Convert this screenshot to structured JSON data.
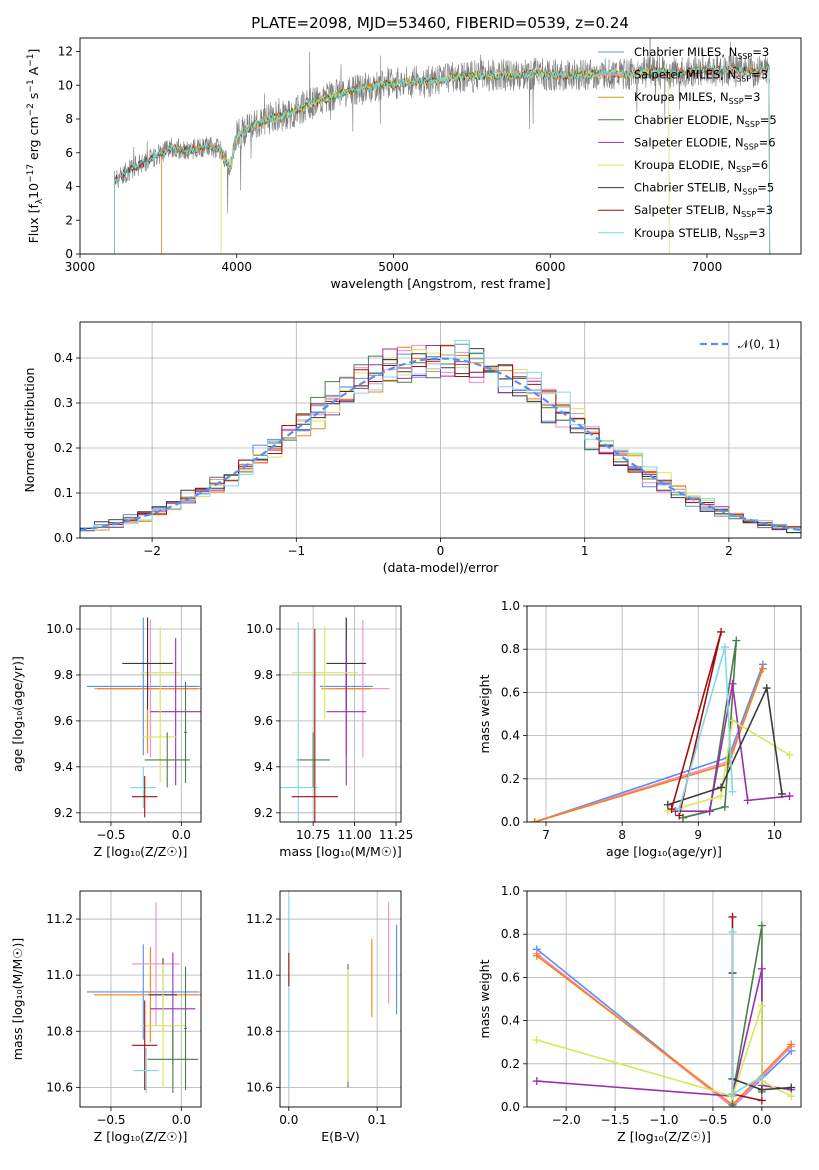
{
  "title": "PLATE=2098, MJD=53460, FIBERID=0539, z=0.24",
  "colors": {
    "chabrier_miles": "#5b8def",
    "salpeter_miles": "#f08ad0",
    "kroupa_miles": "#c8a020",
    "chabrier_elodie": "#4a7c4a",
    "salpeter_elodie": "#9b2fb0",
    "kroupa_elodie": "#d9e65a",
    "chabrier_stelib": "#3a3a3a",
    "salpeter_stelib": "#a01010",
    "kroupa_stelib": "#7fd8e6",
    "orange": "#ff7f0e",
    "data": "#808080",
    "grid": "#b0b0b0",
    "gauss": "#5b8def"
  },
  "chart_data": [
    {
      "type": "line",
      "panel": "spectrum",
      "title": "PLATE=2098, MJD=53460, FIBERID=0539, z=0.24",
      "xlabel": "wavelength [Angstrom, rest frame]",
      "ylabel_parts": {
        "a": "Flux [f",
        "b": "λ",
        "c": "10",
        "d": "−17",
        "e": " erg cm",
        "f": "−2",
        "g": " s",
        "h": "−1",
        "i": " A",
        "j": "−1",
        "k": "]"
      },
      "xlim": [
        3000,
        7600
      ],
      "ylim": [
        0,
        12.8
      ],
      "xticks": [
        3000,
        4000,
        5000,
        6000,
        7000
      ],
      "yticks": [
        0,
        2,
        4,
        6,
        8,
        10,
        12
      ],
      "continuum": [
        [
          3220,
          4.4
        ],
        [
          3300,
          4.9
        ],
        [
          3400,
          5.4
        ],
        [
          3500,
          5.9
        ],
        [
          3600,
          6.3
        ],
        [
          3700,
          6.1
        ],
        [
          3800,
          6.4
        ],
        [
          3900,
          6.2
        ],
        [
          3960,
          5.0
        ],
        [
          4000,
          7.0
        ],
        [
          4100,
          7.6
        ],
        [
          4200,
          8.0
        ],
        [
          4300,
          8.2
        ],
        [
          4400,
          8.6
        ],
        [
          4500,
          9.0
        ],
        [
          4600,
          9.3
        ],
        [
          4700,
          9.6
        ],
        [
          4800,
          9.8
        ],
        [
          4900,
          10.0
        ],
        [
          5000,
          10.1
        ],
        [
          5100,
          10.2
        ],
        [
          5200,
          10.2
        ],
        [
          5300,
          10.3
        ],
        [
          5400,
          10.5
        ],
        [
          5500,
          10.5
        ],
        [
          5600,
          10.6
        ],
        [
          5700,
          10.6
        ],
        [
          5800,
          10.6
        ],
        [
          5900,
          10.7
        ],
        [
          6000,
          10.6
        ],
        [
          6100,
          10.6
        ],
        [
          6200,
          10.6
        ],
        [
          6300,
          10.7
        ],
        [
          6400,
          10.7
        ],
        [
          6500,
          10.6
        ],
        [
          6600,
          10.8
        ],
        [
          6700,
          10.8
        ],
        [
          6800,
          10.7
        ],
        [
          6900,
          10.8
        ],
        [
          7000,
          10.9
        ],
        [
          7100,
          10.9
        ],
        [
          7200,
          10.9
        ],
        [
          7300,
          10.8
        ],
        [
          7400,
          11.0
        ]
      ],
      "legend": [
        {
          "label": "Chabrier MILES, N",
          "sub": "SSP",
          "value": "=3",
          "color": "#5b8def"
        },
        {
          "label": "Salpeter MILES, N",
          "sub": "SSP",
          "value": "=3",
          "color": "#f08ad0"
        },
        {
          "label": "Kroupa MILES, N",
          "sub": "SSP",
          "value": "=3",
          "color": "#c8a020"
        },
        {
          "label": "Chabrier ELODIE, N",
          "sub": "SSP",
          "value": "=5",
          "color": "#4a7c4a"
        },
        {
          "label": "Salpeter ELODIE, N",
          "sub": "SSP",
          "value": "=6",
          "color": "#9b2fb0"
        },
        {
          "label": "Kroupa ELODIE, N",
          "sub": "SSP",
          "value": "=6",
          "color": "#d9e65a"
        },
        {
          "label": "Chabrier STELIB, N",
          "sub": "SSP",
          "value": "=5",
          "color": "#3a3a3a"
        },
        {
          "label": "Salpeter STELIB, N",
          "sub": "SSP",
          "value": "=3",
          "color": "#a01010"
        },
        {
          "label": "Kroupa STELIB, N",
          "sub": "SSP",
          "value": "=3",
          "color": "#7fd8e6"
        }
      ]
    },
    {
      "type": "histogram",
      "panel": "residuals",
      "xlabel": "(data-model)/error",
      "ylabel": "Normed distribution",
      "xlim": [
        -2.5,
        2.5
      ],
      "ylim": [
        0,
        0.48
      ],
      "xticks": [
        -2,
        -1,
        0,
        1,
        2
      ],
      "yticks": [
        0.0,
        0.1,
        0.2,
        0.3,
        0.4
      ],
      "legend_label": "𝒩(0, 1)",
      "bin_width": 0.1
    },
    {
      "type": "errorbar",
      "panel": "age-vs-Z",
      "xlabel": "Z [log₁₀(Z/Z☉)]",
      "ylabel": "age  [log₁₀(age/yr)]",
      "xlim": [
        -0.72,
        0.14
      ],
      "ylim": [
        9.16,
        10.1
      ],
      "xticks": [
        -0.5,
        0.0
      ],
      "yticks": [
        9.2,
        9.4,
        9.6,
        9.8,
        10.0
      ],
      "points": [
        {
          "x": -0.27,
          "xerr": 0.4,
          "y": 9.75,
          "yerr": 0.3,
          "color": "#5b8def"
        },
        {
          "x": -0.22,
          "xerr": 0.4,
          "y": 9.74,
          "yerr": 0.3,
          "color": "#f08ad0"
        },
        {
          "x": -0.24,
          "xerr": 0.36,
          "y": 9.74,
          "yerr": 0.28,
          "color": "#ff7f0e"
        },
        {
          "x": -0.15,
          "xerr": 0.14,
          "y": 9.81,
          "yerr": 0.2,
          "color": "#d9e65a"
        },
        {
          "x": -0.24,
          "xerr": 0.18,
          "y": 9.85,
          "yerr": 0.2,
          "color": "#3a3a3a"
        },
        {
          "x": -0.04,
          "xerr": 0.18,
          "y": 9.64,
          "yerr": 0.32,
          "color": "#9b2fb0"
        },
        {
          "x": -0.15,
          "xerr": 0.12,
          "y": 9.53,
          "yerr": 0.2,
          "color": "#d9e65a"
        },
        {
          "x": -0.1,
          "xerr": 0.16,
          "y": 9.43,
          "yerr": 0.12,
          "color": "#4a7c4a"
        },
        {
          "x": 0.03,
          "xerr": 0.01,
          "y": 9.55,
          "yerr": 0.22,
          "color": "#4a7c4a"
        },
        {
          "x": -0.27,
          "xerr": 0.09,
          "y": 9.31,
          "yerr": 0.09,
          "color": "#7fd8e6"
        },
        {
          "x": -0.26,
          "xerr": 0.09,
          "y": 9.27,
          "yerr": 0.09,
          "color": "#a01010"
        }
      ]
    },
    {
      "type": "errorbar",
      "panel": "age-vs-mass",
      "xlabel": "mass [log₁₀(M/M☉)]",
      "xlim": [
        10.55,
        11.28
      ],
      "ylim": [
        9.16,
        10.1
      ],
      "xticks": [
        10.75,
        11.0,
        11.25
      ],
      "yticks": [
        9.2,
        9.4,
        9.6,
        9.8,
        10.0
      ],
      "points": [
        {
          "x": 10.95,
          "xerr": 0.16,
          "y": 9.75,
          "yerr": 0.3,
          "color": "#5b8def"
        },
        {
          "x": 11.05,
          "xerr": 0.16,
          "y": 9.74,
          "yerr": 0.3,
          "color": "#f08ad0"
        },
        {
          "x": 10.95,
          "xerr": 0.15,
          "y": 9.74,
          "yerr": 0.28,
          "color": "#ff7f0e"
        },
        {
          "x": 10.95,
          "xerr": 0.12,
          "y": 9.85,
          "yerr": 0.2,
          "color": "#3a3a3a"
        },
        {
          "x": 10.95,
          "xerr": 0.12,
          "y": 9.64,
          "yerr": 0.32,
          "color": "#9b2fb0"
        },
        {
          "x": 10.82,
          "xerr": 0.2,
          "y": 9.81,
          "yerr": 0.2,
          "color": "#d9e65a"
        },
        {
          "x": 10.75,
          "xerr": 0.1,
          "y": 9.43,
          "yerr": 0.12,
          "color": "#4a7c4a"
        },
        {
          "x": 10.66,
          "xerr": 0.12,
          "y": 9.31,
          "yerr": 0.72,
          "color": "#7fd8e6"
        },
        {
          "x": 10.76,
          "xerr": 0.14,
          "y": 9.27,
          "yerr": 0.73,
          "color": "#a01010"
        }
      ]
    },
    {
      "type": "line",
      "panel": "mass-weight-vs-age",
      "xlabel": "age  [log₁₀(age/yr)]",
      "ylabel": "mass weight",
      "xlim": [
        6.75,
        10.35
      ],
      "ylim": [
        0,
        1.0
      ],
      "xticks": [
        7,
        8,
        9,
        10
      ],
      "yticks": [
        0.0,
        0.2,
        0.4,
        0.6,
        0.8,
        1.0
      ],
      "series": [
        {
          "color": "#5b8def",
          "x": [
            6.85,
            9.4,
            9.85
          ],
          "y": [
            0.0,
            0.3,
            0.73
          ]
        },
        {
          "color": "#f08ad0",
          "x": [
            6.85,
            9.4,
            9.85
          ],
          "y": [
            0.0,
            0.28,
            0.71
          ]
        },
        {
          "color": "#ff7f0e",
          "x": [
            6.85,
            9.4,
            9.85
          ],
          "y": [
            0.0,
            0.27,
            0.71
          ]
        },
        {
          "color": "#4a7c4a",
          "x": [
            8.8,
            9.15,
            9.5,
            9.35,
            8.8
          ],
          "y": [
            0.02,
            0.05,
            0.84,
            0.07,
            0.02
          ]
        },
        {
          "color": "#9b2fb0",
          "x": [
            8.7,
            9.15,
            9.45,
            9.65,
            10.2
          ],
          "y": [
            0.05,
            0.05,
            0.64,
            0.1,
            0.12
          ]
        },
        {
          "color": "#d9e65a",
          "x": [
            8.6,
            9.3,
            9.45,
            10.2
          ],
          "y": [
            0.05,
            0.12,
            0.47,
            0.31
          ]
        },
        {
          "color": "#3a3a3a",
          "x": [
            8.6,
            9.3,
            9.9,
            10.1
          ],
          "y": [
            0.08,
            0.16,
            0.62,
            0.13
          ]
        },
        {
          "color": "#a01010",
          "x": [
            8.65,
            9.3,
            8.75
          ],
          "y": [
            0.06,
            0.88,
            0.03
          ]
        },
        {
          "color": "#7fd8e6",
          "x": [
            8.75,
            9.35,
            9.45
          ],
          "y": [
            0.06,
            0.81,
            0.14
          ]
        }
      ]
    },
    {
      "type": "errorbar",
      "panel": "mass-vs-Z",
      "xlabel": "Z [log₁₀(Z/Z☉)]",
      "ylabel": "mass [log₁₀(M/M☉)]",
      "xlim": [
        -0.72,
        0.14
      ],
      "ylim": [
        10.53,
        11.3
      ],
      "xticks": [
        -0.5,
        0.0
      ],
      "yticks": [
        10.6,
        10.8,
        11.0,
        11.2
      ],
      "points": [
        {
          "x": -0.27,
          "xerr": 0.4,
          "y": 10.94,
          "yerr": 0.17,
          "color": "#5b8def"
        },
        {
          "x": -0.22,
          "xerr": 0.4,
          "y": 10.93,
          "yerr": 0.17,
          "color": "#ff7f0e"
        },
        {
          "x": -0.18,
          "xerr": 0.17,
          "y": 11.04,
          "yerr": 0.22,
          "color": "#f08ad0"
        },
        {
          "x": -0.13,
          "xerr": 0.1,
          "y": 10.93,
          "yerr": 0.13,
          "color": "#3a3a3a"
        },
        {
          "x": -0.06,
          "xerr": 0.16,
          "y": 10.88,
          "yerr": 0.2,
          "color": "#9b2fb0"
        },
        {
          "x": -0.13,
          "xerr": 0.16,
          "y": 10.82,
          "yerr": 0.22,
          "color": "#d9e65a"
        },
        {
          "x": -0.06,
          "xerr": 0.18,
          "y": 10.7,
          "yerr": 0.12,
          "color": "#4a7c4a"
        },
        {
          "x": 0.03,
          "xerr": 0.01,
          "y": 10.81,
          "yerr": 0.22,
          "color": "#4a7c4a"
        },
        {
          "x": -0.26,
          "xerr": 0.09,
          "y": 10.75,
          "yerr": 0.16,
          "color": "#a01010"
        },
        {
          "x": -0.25,
          "xerr": 0.09,
          "y": 10.66,
          "yerr": 0.08,
          "color": "#7fd8e6"
        }
      ]
    },
    {
      "type": "errorbar",
      "panel": "mass-vs-EBV",
      "xlabel": "E(B-V)",
      "xlim": [
        -0.01,
        0.127
      ],
      "ylim": [
        10.53,
        11.3
      ],
      "xticks": [
        0.0,
        0.1
      ],
      "yticks": [
        10.6,
        10.8,
        11.0,
        11.2
      ],
      "points": [
        {
          "x": 0.0,
          "y": 10.94,
          "yerr": 0.34,
          "color": "#7fd8e6"
        },
        {
          "x": 0.0,
          "y": 11.02,
          "yerr": 0.06,
          "color": "#a01010"
        },
        {
          "x": 0.067,
          "y": 10.82,
          "yerr": 0.22,
          "color": "#4a7c4a"
        },
        {
          "x": 0.067,
          "y": 10.82,
          "yerr": 0.2,
          "color": "#d9e65a"
        },
        {
          "x": 0.094,
          "y": 10.99,
          "yerr": 0.14,
          "color": "#ff7f0e"
        },
        {
          "x": 0.113,
          "y": 11.08,
          "yerr": 0.18,
          "color": "#f08ad0"
        },
        {
          "x": 0.122,
          "y": 11.02,
          "yerr": 0.16,
          "color": "#5b8def"
        }
      ]
    },
    {
      "type": "line",
      "panel": "mass-weight-vs-Z",
      "xlabel": "Z [log₁₀(Z/Z☉)]",
      "ylabel": "mass weight",
      "xlim": [
        -2.4,
        0.4
      ],
      "ylim": [
        0,
        1.0
      ],
      "xticks": [
        -2.0,
        -1.5,
        -1.0,
        -0.5,
        0.0
      ],
      "yticks": [
        0.0,
        0.2,
        0.4,
        0.6,
        0.8,
        1.0
      ],
      "series": [
        {
          "color": "#5b8def",
          "x": [
            -2.3,
            -0.3,
            0.3
          ],
          "y": [
            0.73,
            0.0,
            0.26
          ]
        },
        {
          "color": "#f08ad0",
          "x": [
            -2.3,
            -0.3,
            0.3
          ],
          "y": [
            0.71,
            0.0,
            0.28
          ]
        },
        {
          "color": "#ff7f0e",
          "x": [
            -2.3,
            -0.3,
            0.3
          ],
          "y": [
            0.7,
            0.01,
            0.29
          ]
        },
        {
          "color": "#4a7c4a",
          "x": [
            -0.3,
            -0.3,
            0.0,
            0.0
          ],
          "y": [
            0.01,
            0.05,
            0.84,
            0.07
          ]
        },
        {
          "color": "#9b2fb0",
          "x": [
            -2.3,
            -0.3,
            0.0,
            0.0,
            0.3
          ],
          "y": [
            0.12,
            0.05,
            0.64,
            0.1,
            0.08
          ]
        },
        {
          "color": "#d9e65a",
          "x": [
            -2.3,
            -0.3,
            0.0,
            0.0,
            0.3
          ],
          "y": [
            0.31,
            0.05,
            0.47,
            0.12,
            0.05
          ]
        },
        {
          "color": "#3a3a3a",
          "x": [
            -0.3,
            -0.3,
            0.0,
            0.3
          ],
          "y": [
            0.62,
            0.13,
            0.08,
            0.09
          ]
        },
        {
          "color": "#a01010",
          "x": [
            -0.3,
            -0.3,
            0.0
          ],
          "y": [
            0.88,
            0.06,
            0.03
          ]
        },
        {
          "color": "#7fd8e6",
          "x": [
            -0.3,
            -0.3,
            0.0
          ],
          "y": [
            0.81,
            0.06,
            0.14
          ]
        }
      ]
    }
  ]
}
